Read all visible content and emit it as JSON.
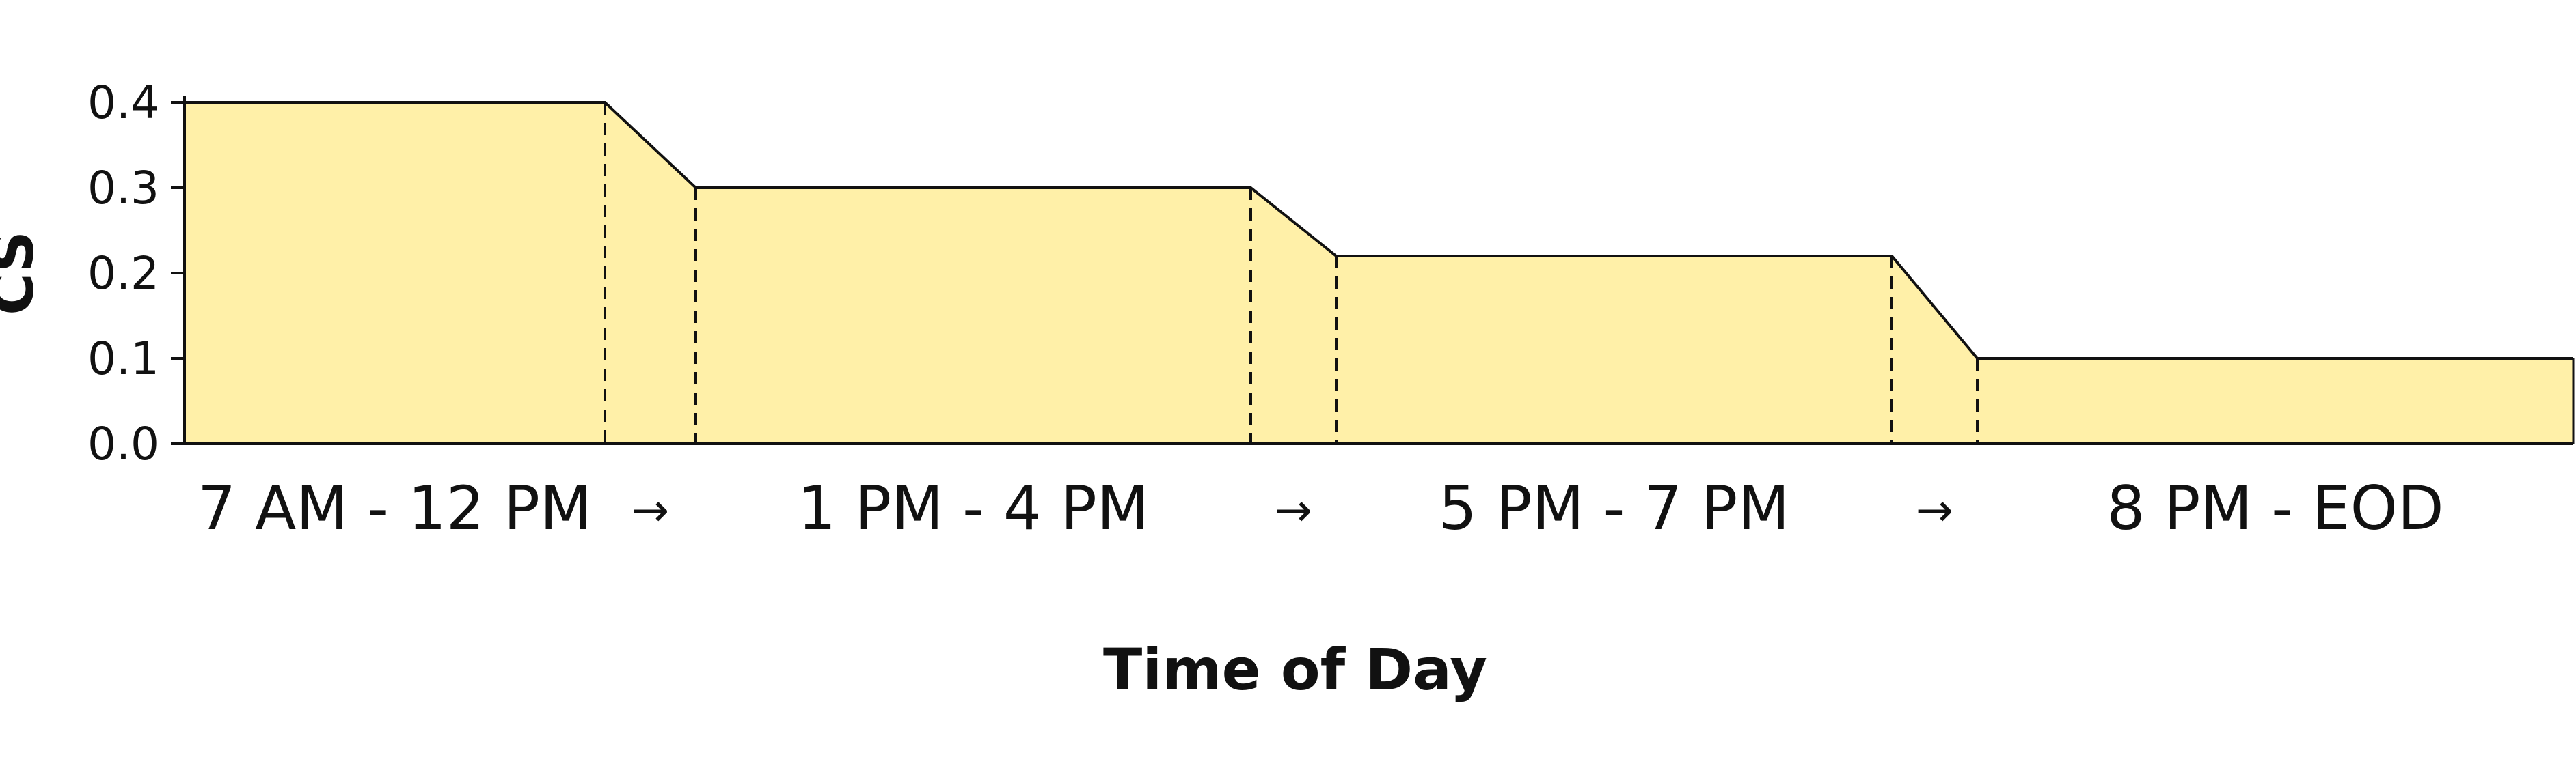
{
  "chart_data": {
    "type": "area",
    "title": "",
    "xlabel": "Time of Day",
    "ylabel": "CS",
    "ylim": [
      0,
      0.4
    ],
    "yticks": [
      "0.0",
      "0.1",
      "0.2",
      "0.3",
      "0.4"
    ],
    "grid": false,
    "colors": {
      "fill": "#FFF0A8",
      "line": "#111111"
    },
    "periods": [
      {
        "label": "7 AM - 12 PM",
        "value": 0.4
      },
      {
        "label": "1 PM - 4 PM",
        "value": 0.3
      },
      {
        "label": "5 PM - 7 PM",
        "value": 0.22
      },
      {
        "label": "8 PM - EOD",
        "value": 0.1
      }
    ],
    "transition_label": "→"
  }
}
